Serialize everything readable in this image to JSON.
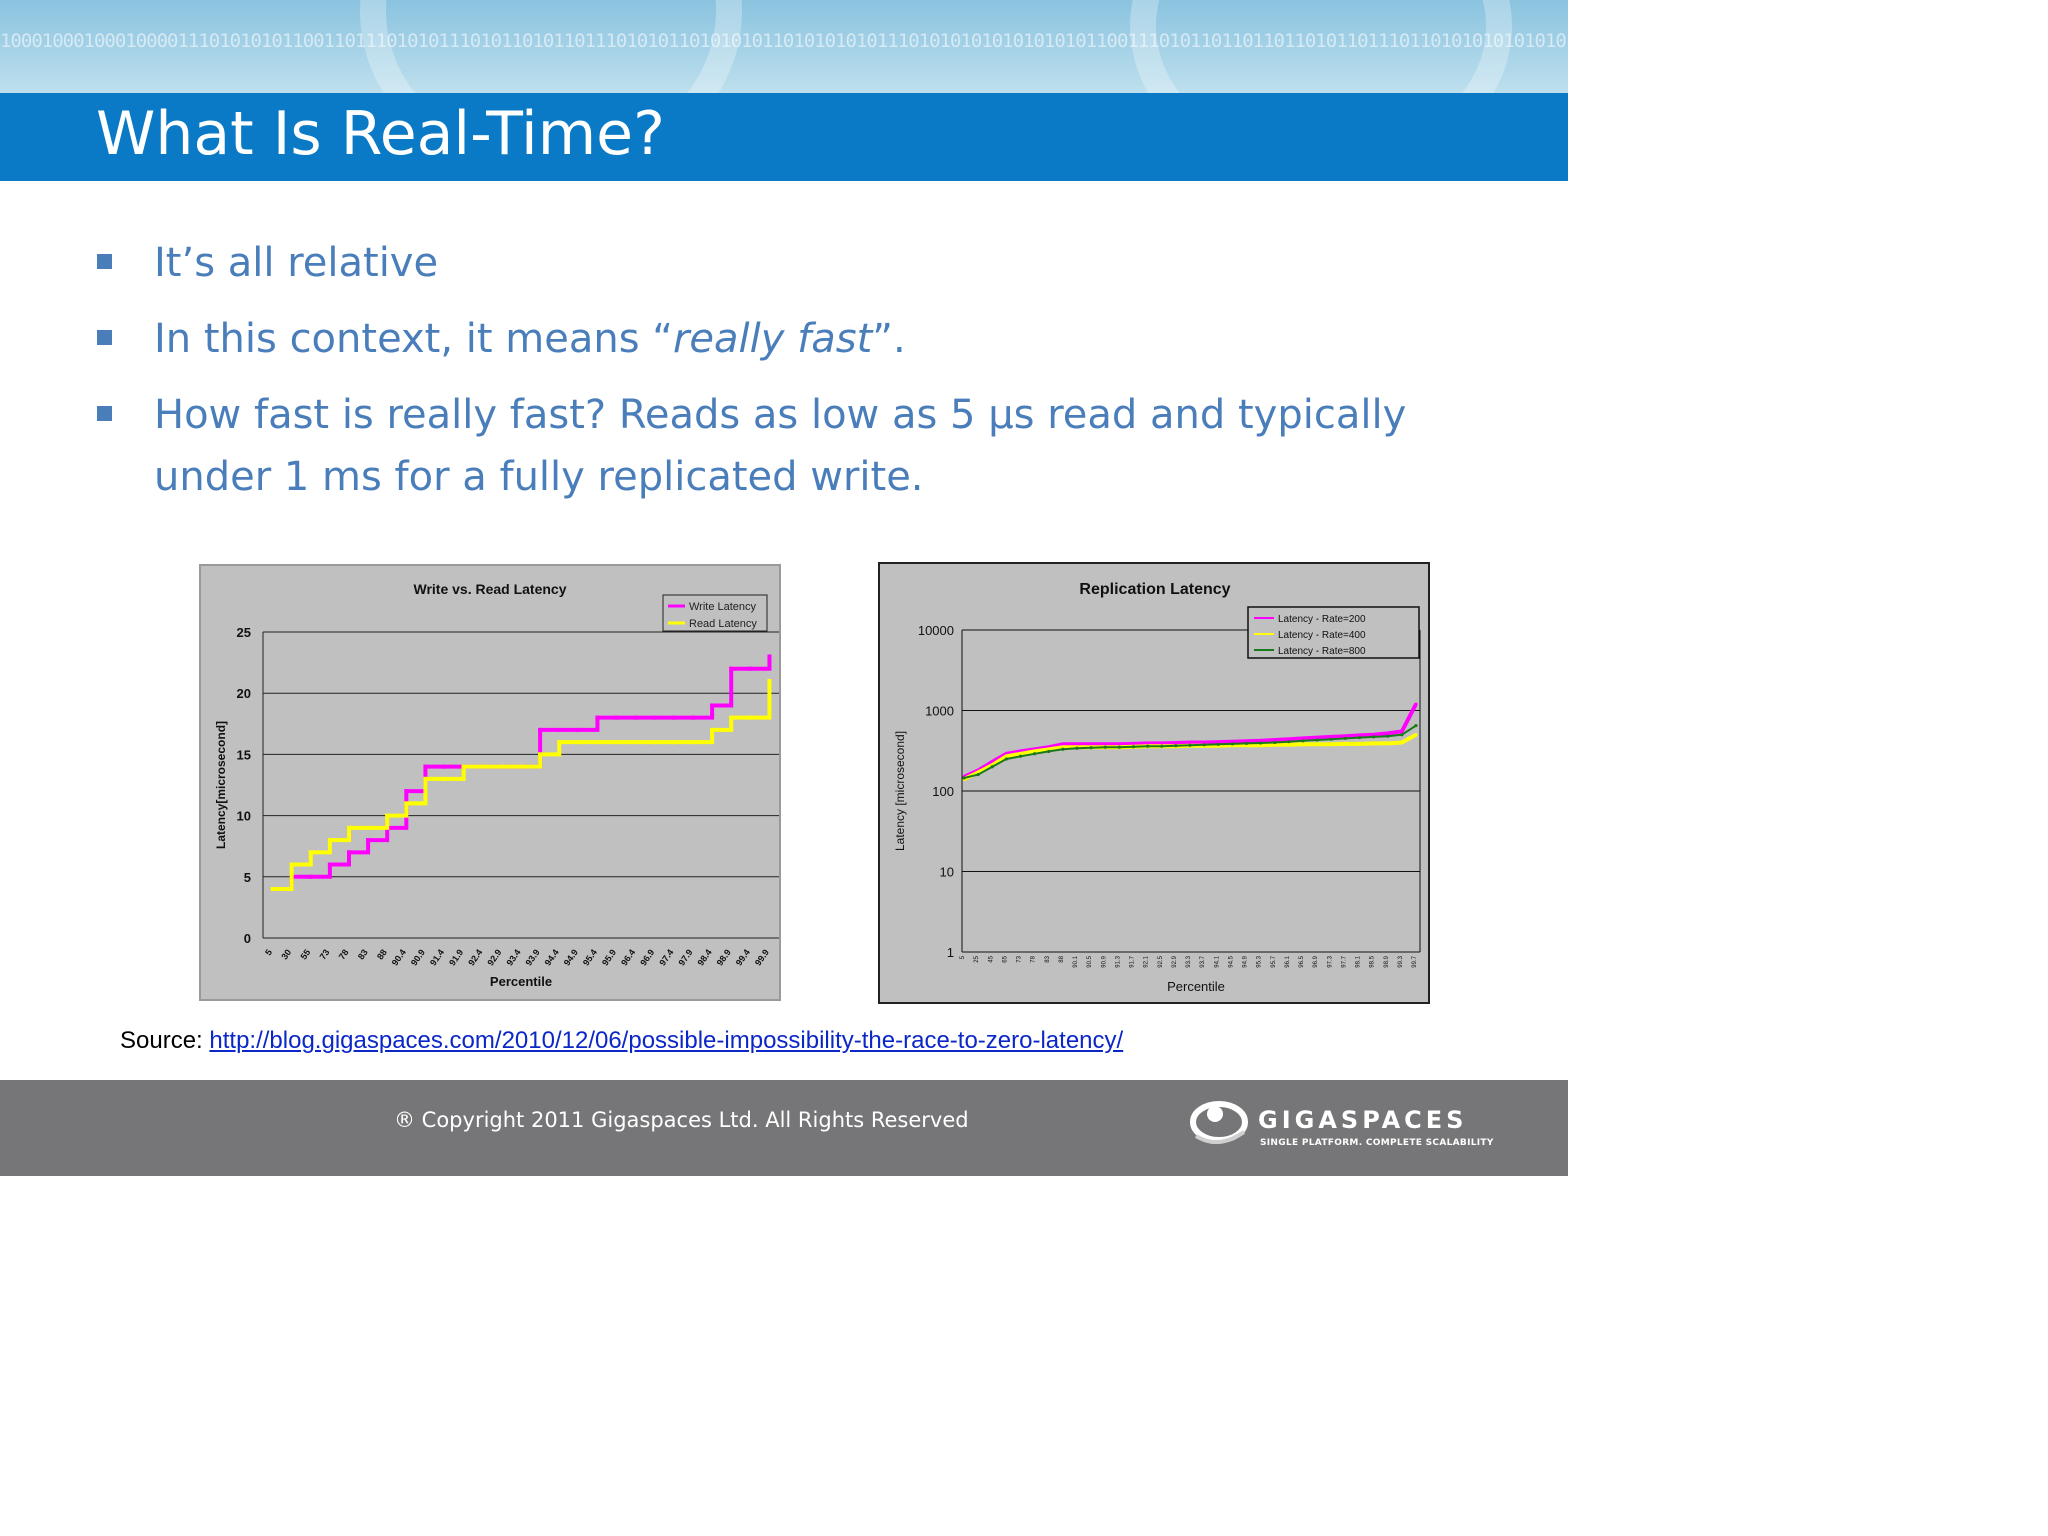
{
  "header": {
    "binary_text": "1000100010001000011101010101100110111010101110101101011011101010110101010110101010101110101010101010101011001110101101101101101011011101101010101010101010101100101011010100",
    "title": "What Is Real-Time?"
  },
  "bullets": [
    {
      "text": "It’s all relative"
    },
    {
      "prefix": "In this context, it means “",
      "emphasis": "really fast",
      "suffix": "”."
    },
    {
      "line1": "How fast is really fast?  Reads as low as 5 µs read and typically",
      "line2": "under 1 ms for a fully replicated write."
    }
  ],
  "source": {
    "label": "Source:",
    "url": "http://blog.gigaspaces.com/2010/12/06/possible-impossibility-the-race-to-zero-latency/"
  },
  "footer": {
    "copyright": "® Copyright 2011 Gigaspaces Ltd. All Rights Reserved",
    "logo_text": "GIGASPACES",
    "logo_tagline": "SINGLE PLATFORM. COMPLETE SCALABILITY"
  },
  "colors": {
    "title_bar": "#0a7ac6",
    "bullet_text": "#4a7ebb",
    "footer": "#767577",
    "chart_bg": "#c0c0c0",
    "write": "#ff00ff",
    "read": "#ffff00",
    "rate800": "#1a7a1a"
  },
  "chart_data": [
    {
      "type": "line",
      "title": "Write vs. Read Latency",
      "xlabel": "Percentile",
      "ylabel": "Latency[microsecond]",
      "ylim": [
        0,
        25
      ],
      "yticks": [
        "0",
        "5",
        "10",
        "15",
        "20",
        "25"
      ],
      "x_tick_labels": [
        "5",
        "30",
        "55",
        "73",
        "78",
        "83",
        "88",
        "90.4",
        "90.9",
        "91.4",
        "91.9",
        "92.4",
        "92.9",
        "93.4",
        "93.9",
        "94.4",
        "94.9",
        "95.4",
        "95.9",
        "96.4",
        "96.9",
        "97.4",
        "97.9",
        "98.4",
        "98.9",
        "99.4",
        "99.9"
      ],
      "grid": true,
      "legend": "top-right",
      "series": [
        {
          "name": "Write Latency",
          "color": "#ff00ff",
          "values": [
            4,
            5,
            5,
            6,
            7,
            8,
            9,
            12,
            14,
            14,
            14,
            14,
            14,
            14,
            17,
            17,
            17,
            18,
            18,
            18,
            18,
            18,
            18,
            19,
            22,
            22,
            23
          ]
        },
        {
          "name": "Read Latency",
          "color": "#ffff00",
          "values": [
            4,
            6,
            7,
            8,
            9,
            9,
            10,
            11,
            13,
            13,
            14,
            14,
            14,
            14,
            15,
            16,
            16,
            16,
            16,
            16,
            16,
            16,
            16,
            17,
            18,
            18,
            21
          ]
        }
      ]
    },
    {
      "type": "line",
      "title": "Replication Latency",
      "xlabel": "Percentile",
      "ylabel": "Latency [microsecond]",
      "yscale": "log",
      "ylim": [
        1,
        10000
      ],
      "yticks": [
        "1",
        "10",
        "100",
        "1000",
        "10000"
      ],
      "grid": true,
      "legend": "top-right",
      "x_tick_labels": [
        "5",
        "25",
        "45",
        "65",
        "73",
        "78",
        "83",
        "88",
        "90.1",
        "90.5",
        "90.9",
        "91.3",
        "91.7",
        "92.1",
        "92.5",
        "92.9",
        "93.3",
        "93.7",
        "94.1",
        "94.5",
        "94.9",
        "95.3",
        "95.7",
        "96.1",
        "96.5",
        "96.9",
        "97.3",
        "97.7",
        "98.1",
        "98.5",
        "98.9",
        "99.3",
        "99.7"
      ],
      "series": [
        {
          "name": "Latency - Rate=200",
          "color": "#ff00ff",
          "values": [
            150,
            180,
            230,
            290,
            310,
            330,
            350,
            380,
            380,
            380,
            380,
            380,
            385,
            390,
            390,
            395,
            400,
            400,
            405,
            410,
            415,
            420,
            430,
            440,
            450,
            460,
            470,
            480,
            490,
            500,
            520,
            550,
            1200
          ]
        },
        {
          "name": "Latency - Rate=400",
          "color": "#ffff00",
          "values": [
            140,
            170,
            210,
            270,
            290,
            310,
            330,
            350,
            350,
            350,
            350,
            350,
            355,
            360,
            360,
            360,
            365,
            365,
            365,
            370,
            370,
            370,
            375,
            375,
            380,
            380,
            380,
            385,
            385,
            390,
            390,
            400,
            500
          ]
        },
        {
          "name": "Latency - Rate=800",
          "color": "#1a7a1a",
          "values": [
            145,
            160,
            200,
            250,
            270,
            290,
            310,
            330,
            340,
            345,
            350,
            350,
            355,
            360,
            360,
            365,
            370,
            375,
            380,
            385,
            390,
            395,
            400,
            410,
            420,
            430,
            440,
            450,
            460,
            470,
            480,
            500,
            650
          ]
        }
      ]
    }
  ]
}
